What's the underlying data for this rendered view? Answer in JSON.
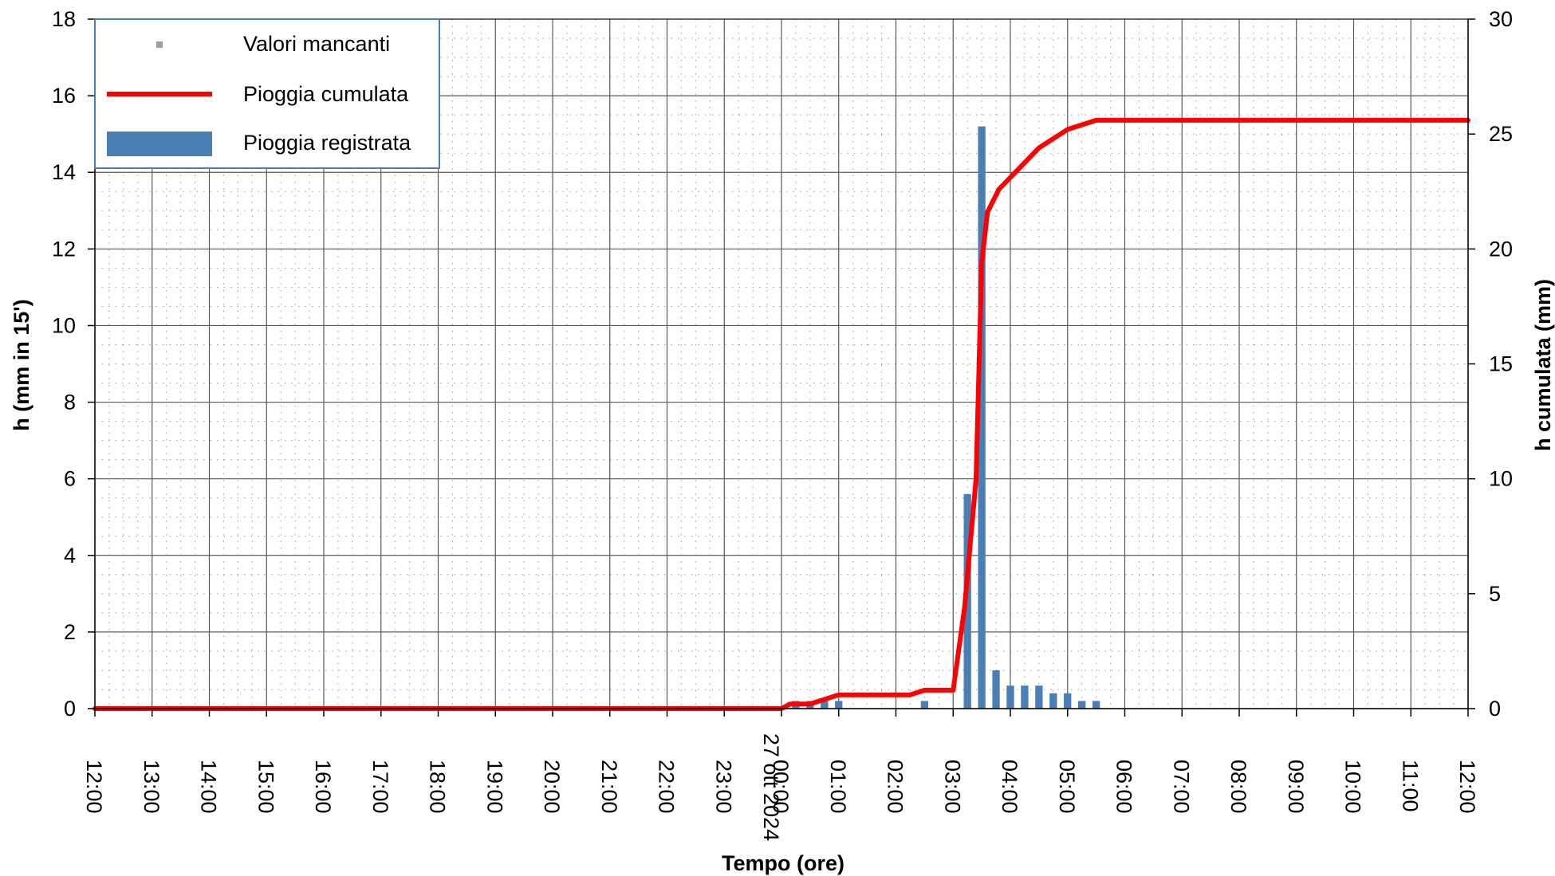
{
  "chart_data": {
    "type": "bar+line",
    "xlabel": "Tempo (ore)",
    "ylabel_left": "h (mm in 15')",
    "ylabel_right": "h cumulata (mm)",
    "ylim_left": [
      0,
      18
    ],
    "ylim_right": [
      0,
      30
    ],
    "yticks_left": [
      "0",
      "2",
      "4",
      "6",
      "8",
      "10",
      "12",
      "14",
      "16",
      "18"
    ],
    "yticks_right": [
      "0",
      "5",
      "10",
      "15",
      "20",
      "25",
      "30"
    ],
    "xlim_hours": [
      0,
      24
    ],
    "xtick_labels": [
      "12:00",
      "13:00",
      "14:00",
      "15:00",
      "16:00",
      "17:00",
      "18:00",
      "19:00",
      "20:00",
      "21:00",
      "22:00",
      "23:00",
      "00:00",
      "01:00",
      "02:00",
      "03:00",
      "04:00",
      "05:00",
      "06:00",
      "07:00",
      "08:00",
      "09:00",
      "10:00",
      "11:00",
      "12:00"
    ],
    "date_label": "27 ott 2024",
    "grid": true,
    "legend": {
      "position": "top-left",
      "entries": [
        {
          "label": "Valori mancanti",
          "marker": "square",
          "color": "#a0a0a0"
        },
        {
          "label": "Pioggia cumulata",
          "marker": "line",
          "color": "#ff0000"
        },
        {
          "label": "Pioggia registrata",
          "marker": "bar",
          "color": "#4a7fb5"
        }
      ]
    },
    "series": [
      {
        "name": "Pioggia registrata",
        "type": "bar",
        "color": "#4a7fb5",
        "x": [
          12.25,
          12.5,
          12.75,
          13.0,
          14.5,
          15.25,
          15.5,
          15.75,
          16.0,
          16.25,
          16.5,
          16.75,
          17.0,
          17.25,
          17.5
        ],
        "y": [
          0.2,
          0.2,
          0.2,
          0.2,
          0.2,
          5.6,
          15.2,
          1.0,
          0.6,
          0.6,
          0.6,
          0.4,
          0.4,
          0.2,
          0.2
        ]
      },
      {
        "name": "Pioggia cumulata",
        "type": "line",
        "color": "#ff0000",
        "x": [
          0,
          12.0,
          12.15,
          12.5,
          12.75,
          13.0,
          13.75,
          14.25,
          14.5,
          15.0,
          15.2,
          15.4,
          15.5,
          15.6,
          15.8,
          16.5,
          17.0,
          17.5,
          24.0
        ],
        "y": [
          0,
          0,
          0.2,
          0.2,
          0.4,
          0.6,
          0.6,
          0.6,
          0.8,
          0.8,
          4.4,
          10.0,
          19.4,
          21.6,
          22.6,
          24.4,
          25.2,
          25.6,
          25.6
        ]
      }
    ]
  }
}
